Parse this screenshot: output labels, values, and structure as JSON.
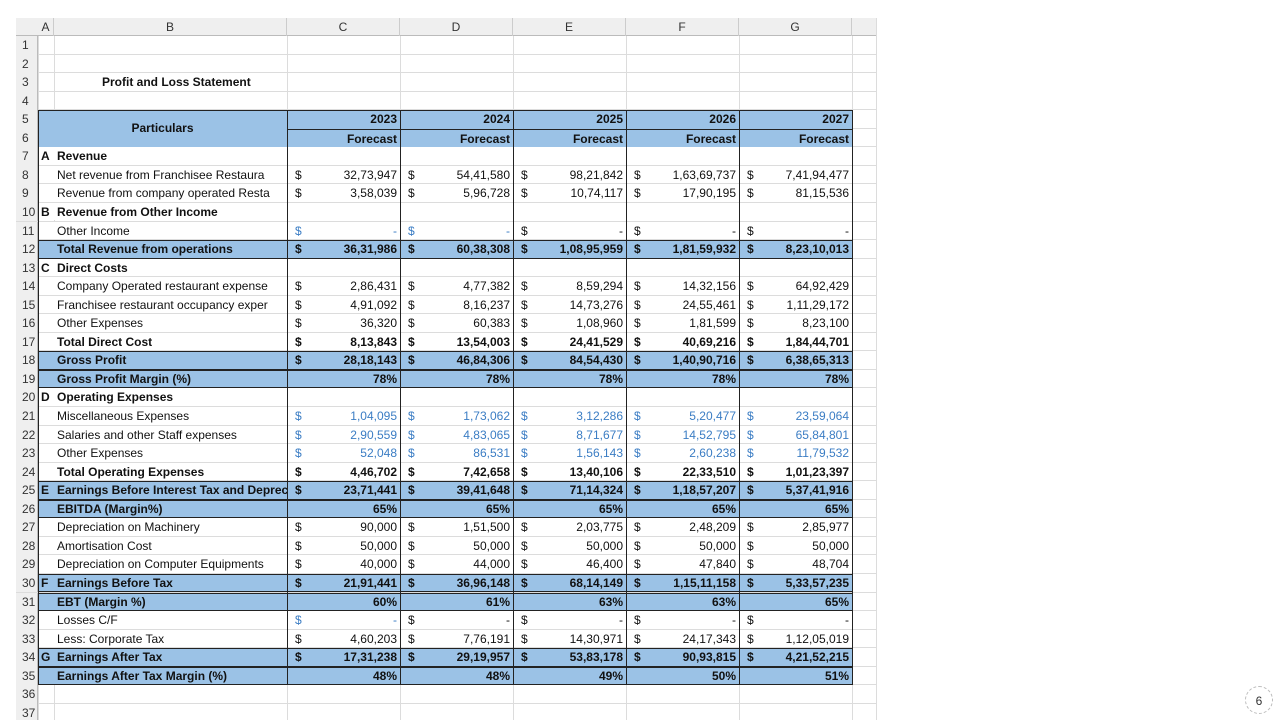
{
  "column_headers": [
    "A",
    "B",
    "C",
    "D",
    "E",
    "F",
    "G"
  ],
  "row_numbers": [
    1,
    2,
    3,
    4,
    5,
    6,
    7,
    8,
    9,
    10,
    11,
    12,
    13,
    14,
    15,
    16,
    17,
    18,
    19,
    20,
    21,
    22,
    23,
    24,
    25,
    26,
    27,
    28,
    29,
    30,
    31,
    32,
    33,
    34,
    35,
    36,
    37
  ],
  "title": "Profit and Loss Statement",
  "header": {
    "particulars": "Particulars",
    "years": [
      2023,
      2024,
      2025,
      2026,
      2027
    ],
    "subheaders": [
      "Forecast",
      "Forecast",
      "Forecast",
      "Forecast",
      "Forecast"
    ]
  },
  "rows": [
    {
      "letter": "A",
      "label": "Revenue",
      "bold": true
    },
    {
      "label": "Net revenue from Franchisee Restaura",
      "symbol": "$",
      "values": [
        "32,73,947",
        "54,41,580",
        "98,21,842",
        "1,63,69,737",
        "7,41,94,477"
      ]
    },
    {
      "label": "Revenue from company operated Resta",
      "symbol": "$",
      "values": [
        "3,58,039",
        "5,96,728",
        "10,74,117",
        "17,90,195",
        "81,15,536"
      ]
    },
    {
      "letter": "B",
      "label": "Revenue from Other Income",
      "bold": true
    },
    {
      "label": "Other Income",
      "symbol": "$",
      "values": [
        "-",
        "-",
        "-",
        "-",
        "-"
      ],
      "blue_columns": [
        0,
        1
      ]
    },
    {
      "label": "Total Revenue from operations",
      "symbol": "$",
      "values": [
        "36,31,986",
        "60,38,308",
        "1,08,95,959",
        "1,81,59,932",
        "8,23,10,013"
      ],
      "bold": true,
      "highlight": true
    },
    {
      "letter": "C",
      "label": "Direct Costs",
      "bold": true
    },
    {
      "label": "Company Operated restaurant expense",
      "symbol": "$",
      "values": [
        "2,86,431",
        "4,77,382",
        "8,59,294",
        "14,32,156",
        "64,92,429"
      ]
    },
    {
      "label": "Franchisee restaurant occupancy exper",
      "symbol": "$",
      "values": [
        "4,91,092",
        "8,16,237",
        "14,73,276",
        "24,55,461",
        "1,11,29,172"
      ]
    },
    {
      "label": "Other Expenses",
      "symbol": "$",
      "values": [
        "36,320",
        "60,383",
        "1,08,960",
        "1,81,599",
        "8,23,100"
      ]
    },
    {
      "label": "Total Direct Cost",
      "symbol": "$",
      "values": [
        "8,13,843",
        "13,54,003",
        "24,41,529",
        "40,69,216",
        "1,84,44,701"
      ],
      "bold": true
    },
    {
      "label": "Gross Profit",
      "symbol": "$",
      "values": [
        "28,18,143",
        "46,84,306",
        "84,54,430",
        "1,40,90,716",
        "6,38,65,313"
      ],
      "bold": true,
      "highlight": true
    },
    {
      "label": "Gross Profit Margin (%)",
      "values": [
        "78%",
        "78%",
        "78%",
        "78%",
        "78%"
      ],
      "bold": true,
      "highlight": true
    },
    {
      "letter": "D",
      "label": "Operating Expenses",
      "bold": true
    },
    {
      "label": "Miscellaneous Expenses",
      "symbol": "$",
      "values": [
        "1,04,095",
        "1,73,062",
        "3,12,286",
        "5,20,477",
        "23,59,064"
      ],
      "blue_columns": [
        0,
        1,
        2,
        3,
        4
      ]
    },
    {
      "label": "Salaries and other Staff expenses",
      "symbol": "$",
      "values": [
        "2,90,559",
        "4,83,065",
        "8,71,677",
        "14,52,795",
        "65,84,801"
      ],
      "blue_columns": [
        0,
        1,
        2,
        3,
        4
      ]
    },
    {
      "label": "Other Expenses",
      "symbol": "$",
      "values": [
        "52,048",
        "86,531",
        "1,56,143",
        "2,60,238",
        "11,79,532"
      ],
      "blue_columns": [
        0,
        1,
        2,
        3,
        4
      ]
    },
    {
      "label": "Total Operating Expenses",
      "symbol": "$",
      "values": [
        "4,46,702",
        "7,42,658",
        "13,40,106",
        "22,33,510",
        "1,01,23,397"
      ],
      "bold": true
    },
    {
      "letter": "E",
      "label": "Earnings Before Interest Tax and Depreciat",
      "symbol": "$",
      "values": [
        "23,71,441",
        "39,41,648",
        "71,14,324",
        "1,18,57,207",
        "5,37,41,916"
      ],
      "bold": true,
      "highlight": true
    },
    {
      "label": "EBITDA (Margin%)",
      "values": [
        "65%",
        "65%",
        "65%",
        "65%",
        "65%"
      ],
      "bold": true,
      "highlight": true
    },
    {
      "label": "Depreciation on Machinery",
      "symbol": "$",
      "values": [
        "90,000",
        "1,51,500",
        "2,03,775",
        "2,48,209",
        "2,85,977"
      ]
    },
    {
      "label": "Amortisation Cost",
      "symbol": "$",
      "values": [
        "50,000",
        "50,000",
        "50,000",
        "50,000",
        "50,000"
      ]
    },
    {
      "label": "Depreciation on Computer Equipments",
      "symbol": "$",
      "values": [
        "40,000",
        "44,000",
        "46,400",
        "47,840",
        "48,704"
      ]
    },
    {
      "letter": "F",
      "label": "Earnings Before Tax",
      "symbol": "$",
      "values": [
        "21,91,441",
        "36,96,148",
        "68,14,149",
        "1,15,11,158",
        "5,33,57,235"
      ],
      "bold": true,
      "highlight": true
    },
    {
      "label": "EBT (Margin %)",
      "values": [
        "60%",
        "61%",
        "63%",
        "63%",
        "65%"
      ],
      "bold": true,
      "highlight": true
    },
    {
      "label": "Losses C/F",
      "symbol": "$",
      "values": [
        "-",
        "-",
        "-",
        "-",
        "-"
      ],
      "blue_columns": [
        0
      ]
    },
    {
      "label": "Less: Corporate Tax",
      "symbol": "$",
      "values": [
        "4,60,203",
        "7,76,191",
        "14,30,971",
        "24,17,343",
        "1,12,05,019"
      ]
    },
    {
      "letter": "G",
      "label": "Earnings After Tax",
      "symbol": "$",
      "values": [
        "17,31,238",
        "29,19,957",
        "53,83,178",
        "90,93,815",
        "4,21,52,215"
      ],
      "bold": true,
      "highlight": true
    },
    {
      "label": "Earnings After Tax Margin (%)",
      "values": [
        "48%",
        "48%",
        "49%",
        "50%",
        "51%"
      ],
      "bold": true,
      "highlight": true
    }
  ],
  "page_number": 6
}
